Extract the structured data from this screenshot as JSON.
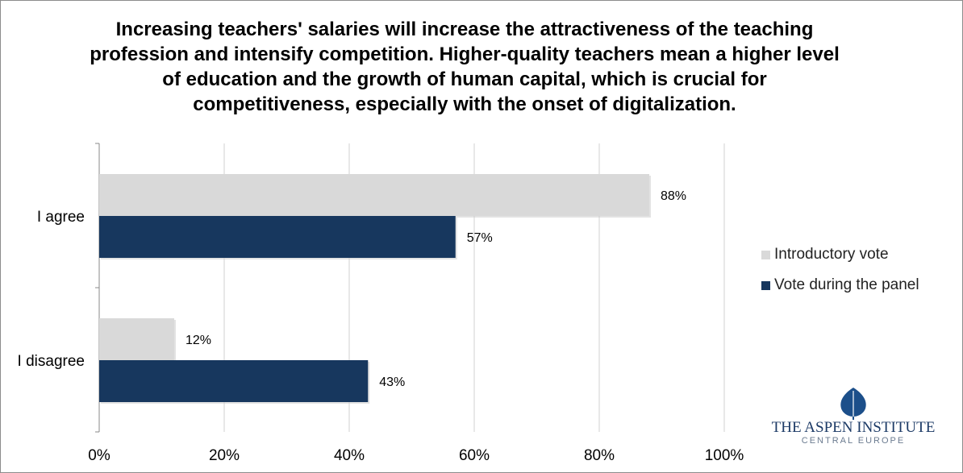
{
  "chart_data": {
    "type": "bar",
    "orientation": "horizontal",
    "title": "Increasing teachers' salaries will increase the attractiveness of the teaching profession and intensify competition. Higher-quality teachers mean a higher level of education and the growth of human capital, which is crucial for competitiveness, especially with the onset of digitalization.",
    "categories": [
      "I agree",
      "I disagree"
    ],
    "series": [
      {
        "name": "Introductory vote",
        "values": [
          88,
          12
        ],
        "color": "#d9d9d9"
      },
      {
        "name": "Vote during the panel",
        "values": [
          57,
          43
        ],
        "color": "#17375e"
      }
    ],
    "value_format": "percent",
    "xlim": [
      0,
      100
    ],
    "xticks": [
      0,
      20,
      40,
      60,
      80,
      100
    ],
    "xtick_labels": [
      "0%",
      "20%",
      "40%",
      "60%",
      "80%",
      "100%"
    ],
    "grid": "vertical",
    "legend_position": "right"
  },
  "logo": {
    "name": "THE ASPEN INSTITUTE",
    "subtitle": "CENTRAL EUROPE",
    "color": "#1c3a66"
  }
}
